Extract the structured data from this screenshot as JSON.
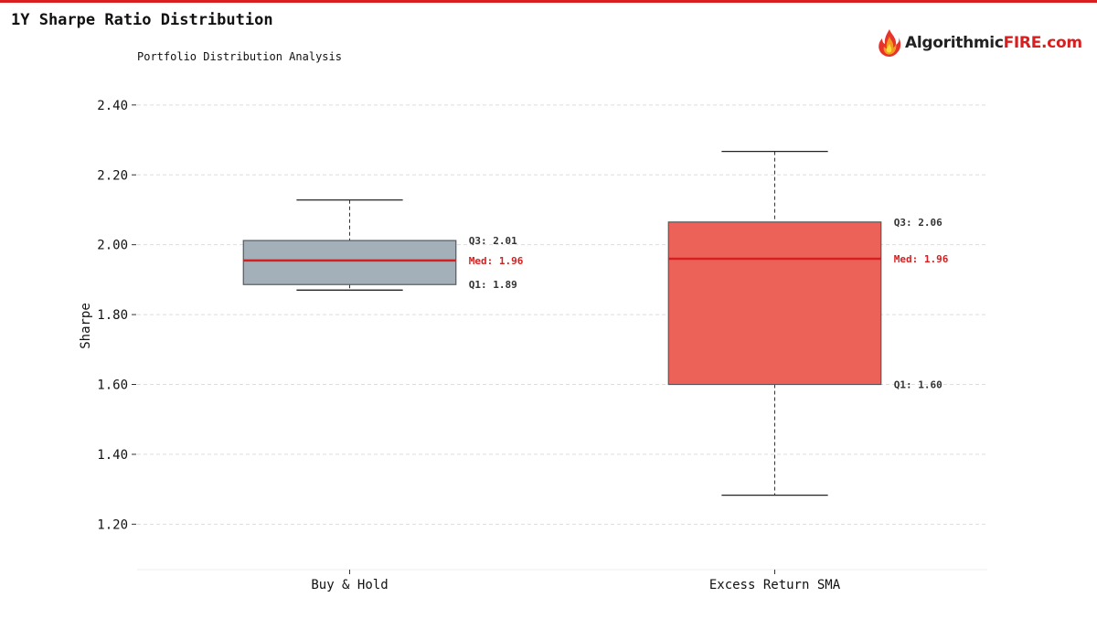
{
  "header": {
    "title": "1Y Sharpe Ratio Distribution",
    "subtitle": "Portfolio Distribution Analysis",
    "accent_color": "#d81e1e"
  },
  "logo": {
    "text_main": "Algorithmic",
    "text_brand": "FIRE.com",
    "icon": "flame-icon"
  },
  "chart_data": {
    "type": "box",
    "title": "1Y Sharpe Ratio Distribution",
    "subtitle": "Portfolio Distribution Analysis",
    "ylabel": "Sharpe",
    "xlabel": "",
    "ylim": [
      1.07,
      2.465
    ],
    "yticks": [
      "1.20",
      "1.40",
      "1.60",
      "1.80",
      "2.00",
      "2.20",
      "2.40"
    ],
    "grid": true,
    "categories": [
      "Buy & Hold",
      "Excess Return SMA"
    ],
    "series": [
      {
        "category": "Buy & Hold",
        "whisker_low": 1.87,
        "q1": 1.886,
        "median": 1.955,
        "q3": 2.012,
        "whisker_high": 2.128,
        "fill": "#a3b0ba",
        "q1_label": "Q1: 1.89",
        "median_label": "Med: 1.96",
        "q3_label": "Q3: 2.01"
      },
      {
        "category": "Excess Return SMA",
        "whisker_low": 1.283,
        "q1": 1.6,
        "median": 1.96,
        "q3": 2.065,
        "whisker_high": 2.267,
        "fill": "#ec6259",
        "q1_label": "Q1: 1.60",
        "median_label": "Med: 1.96",
        "q3_label": "Q3: 2.06"
      }
    ],
    "median_color": "#d81e1e",
    "label_color": "#333333"
  }
}
